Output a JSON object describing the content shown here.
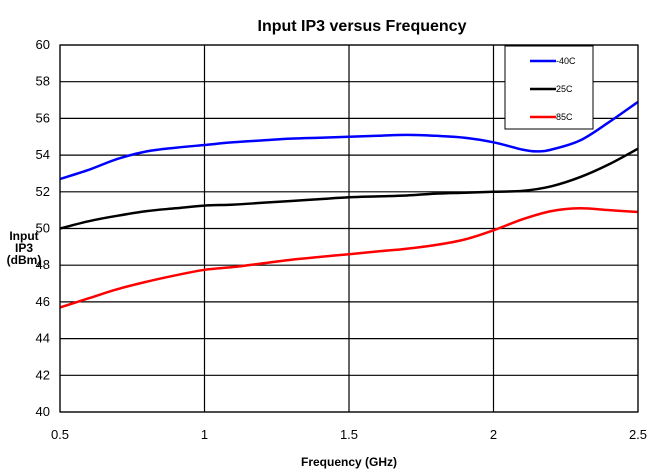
{
  "chart_data": {
    "type": "line",
    "title": "Input IP3 versus Frequency",
    "xlabel": "Frequency (GHz)",
    "ylabel": [
      "Input",
      "IP3",
      "(dBm)"
    ],
    "xlim": [
      0.5,
      2.5
    ],
    "ylim": [
      40,
      60
    ],
    "x_ticks": [
      0.5,
      1,
      1.5,
      2,
      2.5
    ],
    "x_tick_labels": [
      "0.5",
      "1",
      "1.5",
      "2",
      "2.5"
    ],
    "y_ticks": [
      40,
      42,
      44,
      46,
      48,
      50,
      52,
      54,
      56,
      58,
      60
    ],
    "y_tick_labels": [
      "40",
      "42",
      "44",
      "46",
      "48",
      "50",
      "52",
      "54",
      "56",
      "58",
      "60"
    ],
    "grid": true,
    "legend_position": "top-right",
    "series": [
      {
        "name": "-40C",
        "color": "#0000ff",
        "points": [
          [
            0.5,
            52.7
          ],
          [
            0.6,
            53.2
          ],
          [
            0.7,
            53.8
          ],
          [
            0.8,
            54.2
          ],
          [
            0.9,
            54.4
          ],
          [
            1.0,
            54.55
          ],
          [
            1.1,
            54.7
          ],
          [
            1.2,
            54.8
          ],
          [
            1.3,
            54.9
          ],
          [
            1.4,
            54.95
          ],
          [
            1.5,
            55.0
          ],
          [
            1.6,
            55.05
          ],
          [
            1.7,
            55.1
          ],
          [
            1.8,
            55.05
          ],
          [
            1.9,
            54.95
          ],
          [
            2.0,
            54.7
          ],
          [
            2.1,
            54.3
          ],
          [
            2.15,
            54.2
          ],
          [
            2.2,
            54.3
          ],
          [
            2.3,
            54.8
          ],
          [
            2.4,
            55.8
          ],
          [
            2.5,
            56.9
          ]
        ]
      },
      {
        "name": "25C",
        "color": "#000000",
        "points": [
          [
            0.5,
            50.0
          ],
          [
            0.6,
            50.4
          ],
          [
            0.7,
            50.7
          ],
          [
            0.8,
            50.95
          ],
          [
            0.9,
            51.1
          ],
          [
            1.0,
            51.25
          ],
          [
            1.1,
            51.3
          ],
          [
            1.2,
            51.4
          ],
          [
            1.3,
            51.5
          ],
          [
            1.4,
            51.6
          ],
          [
            1.5,
            51.7
          ],
          [
            1.6,
            51.75
          ],
          [
            1.7,
            51.8
          ],
          [
            1.8,
            51.9
          ],
          [
            1.9,
            51.95
          ],
          [
            2.0,
            52.0
          ],
          [
            2.1,
            52.05
          ],
          [
            2.2,
            52.3
          ],
          [
            2.3,
            52.8
          ],
          [
            2.4,
            53.5
          ],
          [
            2.5,
            54.35
          ]
        ]
      },
      {
        "name": "85C",
        "color": "#ff0000",
        "points": [
          [
            0.5,
            45.7
          ],
          [
            0.6,
            46.2
          ],
          [
            0.7,
            46.7
          ],
          [
            0.8,
            47.1
          ],
          [
            0.9,
            47.45
          ],
          [
            1.0,
            47.75
          ],
          [
            1.1,
            47.9
          ],
          [
            1.2,
            48.1
          ],
          [
            1.3,
            48.3
          ],
          [
            1.4,
            48.45
          ],
          [
            1.5,
            48.6
          ],
          [
            1.6,
            48.75
          ],
          [
            1.7,
            48.9
          ],
          [
            1.8,
            49.1
          ],
          [
            1.9,
            49.4
          ],
          [
            2.0,
            49.9
          ],
          [
            2.1,
            50.5
          ],
          [
            2.2,
            50.95
          ],
          [
            2.3,
            51.1
          ],
          [
            2.4,
            51.0
          ],
          [
            2.5,
            50.9
          ]
        ]
      }
    ]
  }
}
